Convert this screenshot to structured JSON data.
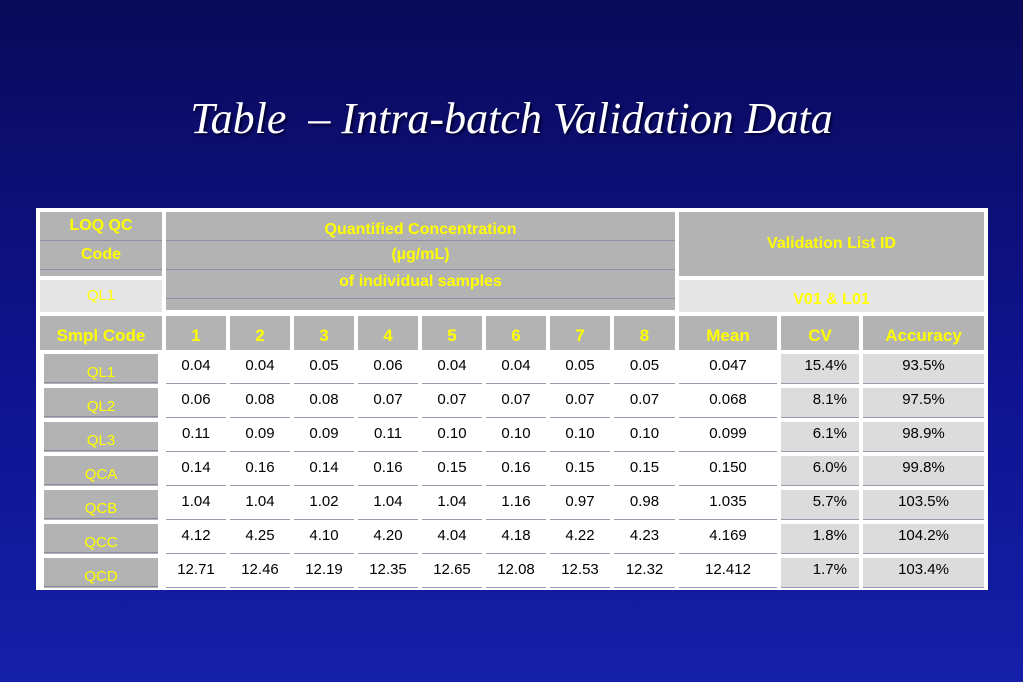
{
  "title": "Table  – Intra-batch Validation Data",
  "header": {
    "loq_qc_line1": "LOQ QC",
    "loq_qc_line2": "Code",
    "loq_qc_value": "QL1",
    "quant_line1": "Quantified Concentration",
    "quant_line2": "(µg/mL)",
    "quant_line3": "of individual samples",
    "validation_label": "Validation List ID",
    "validation_value": "V01 & L01"
  },
  "columns": [
    "Smpl Code",
    "1",
    "2",
    "3",
    "4",
    "5",
    "6",
    "7",
    "8",
    "Mean",
    "CV",
    "Accuracy"
  ],
  "rows": [
    {
      "code": "QL1",
      "values": [
        "0.04",
        "0.04",
        "0.05",
        "0.06",
        "0.04",
        "0.04",
        "0.05",
        "0.05"
      ],
      "mean": "0.047",
      "cv": "15.4%",
      "accuracy": "93.5%"
    },
    {
      "code": "QL2",
      "values": [
        "0.06",
        "0.08",
        "0.08",
        "0.07",
        "0.07",
        "0.07",
        "0.07",
        "0.07"
      ],
      "mean": "0.068",
      "cv": "8.1%",
      "accuracy": "97.5%"
    },
    {
      "code": "QL3",
      "values": [
        "0.11",
        "0.09",
        "0.09",
        "0.11",
        "0.10",
        "0.10",
        "0.10",
        "0.10"
      ],
      "mean": "0.099",
      "cv": "6.1%",
      "accuracy": "98.9%"
    },
    {
      "code": "QCA",
      "values": [
        "0.14",
        "0.16",
        "0.14",
        "0.16",
        "0.15",
        "0.16",
        "0.15",
        "0.15"
      ],
      "mean": "0.150",
      "cv": "6.0%",
      "accuracy": "99.8%"
    },
    {
      "code": "QCB",
      "values": [
        "1.04",
        "1.04",
        "1.02",
        "1.04",
        "1.04",
        "1.16",
        "0.97",
        "0.98"
      ],
      "mean": "1.035",
      "cv": "5.7%",
      "accuracy": "103.5%"
    },
    {
      "code": "QCC",
      "values": [
        "4.12",
        "4.25",
        "4.10",
        "4.20",
        "4.04",
        "4.18",
        "4.22",
        "4.23"
      ],
      "mean": "4.169",
      "cv": "1.8%",
      "accuracy": "104.2%"
    },
    {
      "code": "QCD",
      "values": [
        "12.71",
        "12.46",
        "12.19",
        "12.35",
        "12.65",
        "12.08",
        "12.53",
        "12.32"
      ],
      "mean": "12.412",
      "cv": "1.7%",
      "accuracy": "103.4%"
    }
  ]
}
